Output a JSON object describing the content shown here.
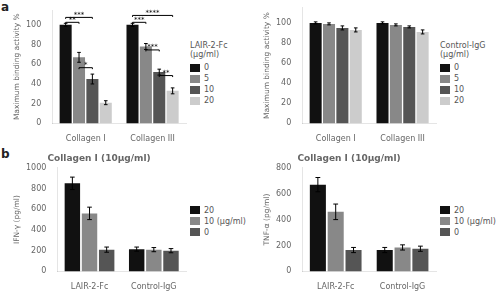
{
  "chart_data": [
    {
      "type": "bar",
      "categories": [
        "Collagen I",
        "Collagen III"
      ],
      "ylabel": "Maximum binding activity %",
      "legend": "right",
      "legend_title": "LAIR-2-Fc\n(μg/ml)",
      "grid": false,
      "series": [
        {
          "name": "0",
          "color": "#111111",
          "values": [
            100,
            100
          ],
          "errors": [
            1.5,
            1.5
          ]
        },
        {
          "name": "5",
          "color": "#888888",
          "values": [
            67,
            78
          ],
          "errors": [
            5,
            3
          ]
        },
        {
          "name": "10",
          "color": "#555555",
          "values": [
            45,
            52
          ],
          "errors": [
            5,
            3
          ]
        },
        {
          "name": "20",
          "color": "#cccccc",
          "values": [
            21,
            33
          ],
          "errors": [
            2,
            3
          ]
        }
      ],
      "ylim": [
        0,
        115
      ],
      "yticks": [
        0,
        20,
        40,
        60,
        80,
        100
      ],
      "annotations": [
        {
          "text": "a"
        },
        {
          "text": "**",
          "category": "Collagen I",
          "series": [
            "0",
            "5"
          ],
          "y": 101,
          "height": 1.5
        },
        {
          "text": "***",
          "category": "Collagen I",
          "series": [
            "0",
            "10"
          ],
          "y": 106,
          "height": 1.5
        },
        {
          "text": "*",
          "category": "Collagen I",
          "series": [
            "5",
            "10"
          ],
          "y": 55,
          "height": 1.5
        },
        {
          "text": "***",
          "category": "Collagen III",
          "series": [
            "0",
            "5"
          ],
          "y": 101,
          "height": 1.5
        },
        {
          "text": "****",
          "category": "Collagen III",
          "series": [
            "0",
            "20"
          ],
          "y": 108,
          "height": 1.5
        },
        {
          "text": "***",
          "category": "Collagen III",
          "series": [
            "5",
            "10"
          ],
          "y": 73,
          "height": 1.5
        },
        {
          "text": "**",
          "category": "Collagen III",
          "series": [
            "10",
            "20"
          ],
          "y": 47,
          "height": 1.5
        }
      ]
    },
    {
      "type": "bar",
      "categories": [
        "Collagen I",
        "Collagen III"
      ],
      "ylabel": "Maximum binding activity %",
      "legend": "right",
      "legend_title": "Control-IgG\n(μg/ml)",
      "grid": false,
      "series": [
        {
          "name": "0",
          "color": "#111111",
          "values": [
            100,
            100
          ],
          "errors": [
            1,
            1
          ]
        },
        {
          "name": "5",
          "color": "#888888",
          "values": [
            99,
            98
          ],
          "errors": [
            1,
            1
          ]
        },
        {
          "name": "10",
          "color": "#555555",
          "values": [
            95,
            96
          ],
          "errors": [
            2,
            1
          ]
        },
        {
          "name": "20",
          "color": "#cccccc",
          "values": [
            93,
            91
          ],
          "errors": [
            2,
            2
          ]
        }
      ],
      "ylim": [
        0,
        115
      ],
      "yticks": [
        0,
        20,
        40,
        60,
        80,
        100
      ]
    },
    {
      "type": "bar",
      "title": "Collagen I (10μg/ml)",
      "categories": [
        "LAIR-2-Fc",
        "Control-IgG"
      ],
      "ylabel": "IFN-γ (pg/ml)",
      "legend": "right",
      "grid": false,
      "series": [
        {
          "name": "20",
          "color": "#111111",
          "values": [
            850,
            215
          ],
          "errors": [
            60,
            20
          ]
        },
        {
          "name": "10 (μg/ml)",
          "color": "#888888",
          "values": [
            560,
            210
          ],
          "errors": [
            60,
            20
          ]
        },
        {
          "name": "0",
          "color": "#555555",
          "values": [
            210,
            200
          ],
          "errors": [
            25,
            20
          ]
        }
      ],
      "ylim": [
        0,
        1000
      ],
      "yticks": [
        0,
        200,
        400,
        600,
        800,
        1000
      ],
      "annotations": [
        {
          "text": "b"
        }
      ]
    },
    {
      "type": "bar",
      "title": "Collagen I (10μg/ml)",
      "categories": [
        "LAIR-2-Fc",
        "Control-IgG"
      ],
      "ylabel": "TNF-α (pg/ml)",
      "legend": "right",
      "grid": false,
      "series": [
        {
          "name": "20",
          "color": "#111111",
          "values": [
            670,
            165
          ],
          "errors": [
            55,
            20
          ]
        },
        {
          "name": "10 (μg/ml)",
          "color": "#888888",
          "values": [
            460,
            185
          ],
          "errors": [
            60,
            20
          ]
        },
        {
          "name": "0",
          "color": "#555555",
          "values": [
            165,
            175
          ],
          "errors": [
            20,
            20
          ]
        }
      ],
      "ylim": [
        0,
        800
      ],
      "yticks": [
        0,
        200,
        400,
        600,
        800
      ]
    }
  ]
}
